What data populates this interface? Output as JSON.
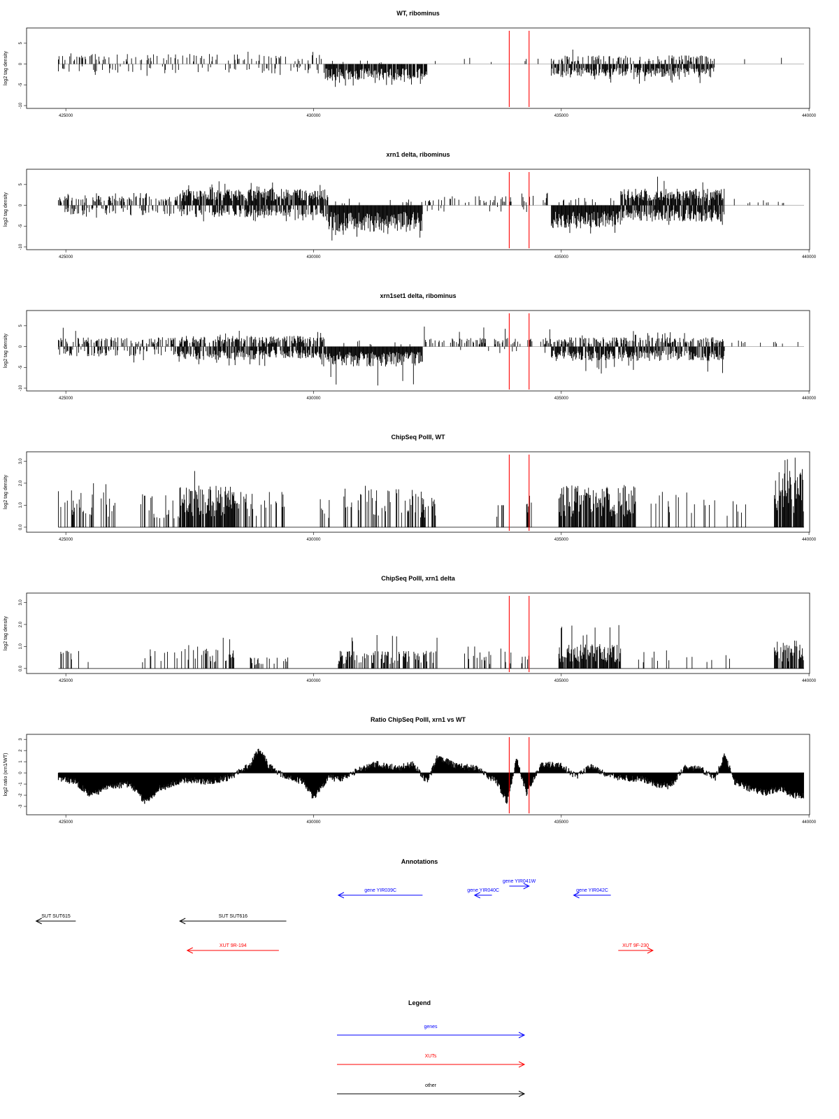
{
  "colors": {
    "marker": "#ff0000",
    "gene": "#0000ff",
    "xut": "#ff0000",
    "other": "#000000",
    "baseline": "#b0b0b0"
  },
  "chart_data": [
    {
      "type": "bar",
      "title": "WT, ribominus",
      "ylabel": "log2 tag density",
      "xlim": [
        424800,
        439900
      ],
      "ylim": [
        -10,
        8
      ],
      "yticks": [
        -10,
        -5,
        0,
        5
      ],
      "xticks": [
        425000,
        430000,
        435000,
        440000
      ],
      "markers": [
        433950,
        434350
      ],
      "profile": {
        "seed": 11,
        "mode": "rna",
        "baselineColor": "gray",
        "segments": [
          {
            "start": 424850,
            "end": 430200,
            "upDensity": 0.25,
            "upMean": 1.5,
            "upMax": 3.0,
            "downDensity": 0.15,
            "downMean": -1.4,
            "downMin": -3.5
          },
          {
            "start": 430200,
            "end": 432300,
            "upDensity": 0.05,
            "upMean": 0.6,
            "upMax": 1.2,
            "downDensity": 0.85,
            "downMean": -2.5,
            "downMin": -5.5
          },
          {
            "start": 432300,
            "end": 434800,
            "upDensity": 0.02,
            "upMean": 1.0,
            "upMax": 1.6,
            "downDensity": 0.0,
            "downMean": -1,
            "downMin": -1
          },
          {
            "start": 434800,
            "end": 438100,
            "upDensity": 0.35,
            "upMean": 1.3,
            "upMax": 3.5,
            "downDensity": 0.8,
            "downMean": -2.0,
            "downMin": -5.0
          },
          {
            "start": 438100,
            "end": 439900,
            "upDensity": 0.02,
            "upMean": 1.0,
            "upMax": 1.5,
            "downDensity": 0.0,
            "downMean": -1,
            "downMin": -1
          }
        ]
      }
    },
    {
      "type": "bar",
      "title": "xrn1 delta, ribominus",
      "ylabel": "log2 tag density",
      "xlim": [
        424800,
        439900
      ],
      "ylim": [
        -10,
        8
      ],
      "yticks": [
        -10,
        -5,
        0,
        5
      ],
      "xticks": [
        425000,
        430000,
        435000,
        440000
      ],
      "markers": [
        433950,
        434350
      ],
      "profile": {
        "seed": 23,
        "mode": "rna",
        "baselineColor": "gray",
        "segments": [
          {
            "start": 424850,
            "end": 427300,
            "upDensity": 0.45,
            "upMean": 1.5,
            "upMax": 3.0,
            "downDensity": 0.25,
            "downMean": -1.4,
            "downMin": -3.0
          },
          {
            "start": 427300,
            "end": 430300,
            "upDensity": 0.85,
            "upMean": 2.5,
            "upMax": 5.8,
            "downDensity": 0.6,
            "downMean": -1.8,
            "downMin": -4.0
          },
          {
            "start": 430300,
            "end": 432200,
            "upDensity": 0.05,
            "upMean": 1.0,
            "upMax": 2.0,
            "downDensity": 1.0,
            "downMean": -4.0,
            "downMin": -8.5
          },
          {
            "start": 432200,
            "end": 434800,
            "upDensity": 0.18,
            "upMean": 1.5,
            "upMax": 3.0,
            "downDensity": 0.05,
            "downMean": -1.0,
            "downMin": -2.0
          },
          {
            "start": 434800,
            "end": 436200,
            "upDensity": 0.1,
            "upMean": 1.2,
            "upMax": 2.0,
            "downDensity": 1.0,
            "downMean": -3.5,
            "downMin": -6.8
          },
          {
            "start": 436200,
            "end": 438300,
            "upDensity": 0.85,
            "upMean": 2.5,
            "upMax": 7.3,
            "downDensity": 0.75,
            "downMean": -2.5,
            "downMin": -6.5
          },
          {
            "start": 438300,
            "end": 439900,
            "upDensity": 0.06,
            "upMean": 1.0,
            "upMax": 1.8,
            "downDensity": 0.0,
            "downMean": -1,
            "downMin": -1
          }
        ]
      }
    },
    {
      "type": "bar",
      "title": "xrn1set1 delta, ribominus",
      "ylabel": "log2 tag density",
      "xlim": [
        424800,
        439900
      ],
      "ylim": [
        -10,
        8
      ],
      "yticks": [
        -10,
        -5,
        0,
        5
      ],
      "xticks": [
        425000,
        430000,
        435000,
        440000
      ],
      "markers": [
        433950,
        434350
      ],
      "profile": {
        "seed": 37,
        "mode": "rna",
        "baselineColor": "gray",
        "segments": [
          {
            "start": 424850,
            "end": 427300,
            "upDensity": 0.4,
            "upMean": 1.4,
            "upMax": 4.8,
            "downDensity": 0.35,
            "downMean": -1.5,
            "downMin": -4.0
          },
          {
            "start": 427300,
            "end": 430300,
            "upDensity": 0.6,
            "upMean": 1.6,
            "upMax": 4.0,
            "downDensity": 0.75,
            "downMean": -2.0,
            "downMin": -5.5
          },
          {
            "start": 430300,
            "end": 432200,
            "upDensity": 0.05,
            "upMean": 1.0,
            "upMax": 2.0,
            "downDensity": 1.0,
            "downMean": -3.0,
            "downMin": -9.5
          },
          {
            "start": 432200,
            "end": 434800,
            "upDensity": 0.35,
            "upMean": 1.3,
            "upMax": 5.0,
            "downDensity": 0.05,
            "downMean": -1.0,
            "downMin": -2.0
          },
          {
            "start": 434800,
            "end": 438300,
            "upDensity": 0.5,
            "upMean": 1.4,
            "upMax": 3.8,
            "downDensity": 0.8,
            "downMean": -2.2,
            "downMin": -6.5
          },
          {
            "start": 438300,
            "end": 439900,
            "upDensity": 0.08,
            "upMean": 1.2,
            "upMax": 2.5,
            "downDensity": 0.0,
            "downMean": -1,
            "downMin": -1
          }
        ]
      }
    },
    {
      "type": "bar",
      "title": "ChipSeq PolII, WT",
      "ylabel": "log2 tag density",
      "xlim": [
        424800,
        439900
      ],
      "ylim": [
        -0.1,
        3.3
      ],
      "yticks": [
        0.0,
        1.0,
        2.0,
        3.0
      ],
      "yticklabels": [
        "0.0",
        "1.0",
        "2.0",
        "3.0"
      ],
      "xticks": [
        425000,
        430000,
        435000,
        440000
      ],
      "markers": [
        433950,
        434350
      ],
      "profile": {
        "seed": 51,
        "mode": "chip",
        "baselineColor": "black",
        "segments": [
          {
            "start": 424850,
            "end": 426000,
            "upDensity": 0.35,
            "upMean": 1.1,
            "upMax": 2.0
          },
          {
            "start": 426500,
            "end": 427300,
            "upDensity": 0.3,
            "upMean": 1.0,
            "upMax": 1.6
          },
          {
            "start": 427300,
            "end": 428400,
            "upDensity": 0.8,
            "upMean": 1.2,
            "upMax": 3.0
          },
          {
            "start": 428400,
            "end": 429500,
            "upDensity": 0.35,
            "upMean": 1.1,
            "upMax": 1.6
          },
          {
            "start": 430100,
            "end": 430400,
            "upDensity": 0.4,
            "upMean": 1.0,
            "upMax": 1.6
          },
          {
            "start": 430600,
            "end": 432500,
            "upDensity": 0.4,
            "upMean": 1.1,
            "upMax": 2.0
          },
          {
            "start": 433700,
            "end": 433850,
            "upDensity": 0.5,
            "upMean": 1.0,
            "upMax": 1.0
          },
          {
            "start": 434300,
            "end": 434400,
            "upDensity": 0.5,
            "upMean": 1.0,
            "upMax": 1.6
          },
          {
            "start": 434950,
            "end": 436500,
            "upDensity": 0.85,
            "upMean": 1.2,
            "upMax": 2.0
          },
          {
            "start": 436800,
            "end": 438800,
            "upDensity": 0.15,
            "upMean": 1.1,
            "upMax": 2.2
          },
          {
            "start": 439300,
            "end": 439900,
            "upDensity": 0.9,
            "upMean": 1.6,
            "upMax": 3.2
          }
        ]
      }
    },
    {
      "type": "bar",
      "title": "ChipSeq PolII, xrn1 delta",
      "ylabel": "log2 tag density",
      "xlim": [
        424800,
        439900
      ],
      "ylim": [
        -0.1,
        3.3
      ],
      "yticks": [
        0.0,
        1.0,
        2.0,
        3.0
      ],
      "yticklabels": [
        "0.0",
        "1.0",
        "2.0",
        "3.0"
      ],
      "xticks": [
        425000,
        430000,
        435000,
        440000
      ],
      "markers": [
        433950,
        434350
      ],
      "profile": {
        "seed": 67,
        "mode": "chip",
        "baselineColor": "black",
        "segments": [
          {
            "start": 424850,
            "end": 426000,
            "upDensity": 0.08,
            "upMean": 0.6,
            "upMax": 0.8
          },
          {
            "start": 426500,
            "end": 427300,
            "upDensity": 0.15,
            "upMean": 0.5,
            "upMax": 1.1
          },
          {
            "start": 427300,
            "end": 428400,
            "upDensity": 0.35,
            "upMean": 0.7,
            "upMax": 1.4
          },
          {
            "start": 428700,
            "end": 429500,
            "upDensity": 0.2,
            "upMean": 0.4,
            "upMax": 0.5
          },
          {
            "start": 430500,
            "end": 432500,
            "upDensity": 0.55,
            "upMean": 0.5,
            "upMax": 1.6
          },
          {
            "start": 433000,
            "end": 434400,
            "upDensity": 0.15,
            "upMean": 0.5,
            "upMax": 1.0
          },
          {
            "start": 434950,
            "end": 436200,
            "upDensity": 0.9,
            "upMean": 0.7,
            "upMax": 2.0
          },
          {
            "start": 436500,
            "end": 438500,
            "upDensity": 0.1,
            "upMean": 0.6,
            "upMax": 1.0
          },
          {
            "start": 439300,
            "end": 439900,
            "upDensity": 0.8,
            "upMean": 0.8,
            "upMax": 1.6
          }
        ]
      }
    },
    {
      "type": "area",
      "title": "Ratio ChipSeq PolII, xrn1 vs WT",
      "ylabel": "log2 ratio (xrn1/WT)",
      "xlim": [
        424800,
        439900
      ],
      "ylim": [
        -3.5,
        3.2
      ],
      "yticks": [
        -3,
        -2,
        -1,
        0,
        1,
        2,
        3
      ],
      "xticks": [
        425000,
        430000,
        435000,
        440000
      ],
      "markers": [
        433950,
        434350
      ],
      "profile": {
        "seed": 83,
        "mode": "ratio",
        "anchors": [
          [
            424850,
            -0.5
          ],
          [
            425200,
            -0.8
          ],
          [
            425500,
            -2.0
          ],
          [
            425900,
            -1.2
          ],
          [
            426300,
            -1.0
          ],
          [
            426600,
            -2.6
          ],
          [
            426900,
            -1.4
          ],
          [
            427400,
            -0.6
          ],
          [
            427900,
            -0.8
          ],
          [
            428300,
            -0.4
          ],
          [
            428700,
            0.6
          ],
          [
            428900,
            2.2
          ],
          [
            429100,
            0.6
          ],
          [
            429400,
            -0.3
          ],
          [
            429800,
            -0.8
          ],
          [
            430000,
            -2.2
          ],
          [
            430300,
            -0.4
          ],
          [
            430600,
            -0.6
          ],
          [
            430900,
            0.3
          ],
          [
            431300,
            0.8
          ],
          [
            431700,
            0.4
          ],
          [
            432000,
            0.8
          ],
          [
            432300,
            -0.8
          ],
          [
            432500,
            1.4
          ],
          [
            432900,
            0.6
          ],
          [
            433300,
            0.4
          ],
          [
            433700,
            -0.8
          ],
          [
            433900,
            -2.6
          ],
          [
            434100,
            1.2
          ],
          [
            434300,
            -1.8
          ],
          [
            434600,
            0.8
          ],
          [
            435000,
            0.6
          ],
          [
            435300,
            -0.3
          ],
          [
            435600,
            0.6
          ],
          [
            435900,
            -0.2
          ],
          [
            436300,
            -0.5
          ],
          [
            436600,
            -0.5
          ],
          [
            436900,
            -1.0
          ],
          [
            437200,
            -1.2
          ],
          [
            437500,
            0.6
          ],
          [
            437800,
            0.4
          ],
          [
            438100,
            -0.5
          ],
          [
            438300,
            1.6
          ],
          [
            438500,
            -0.8
          ],
          [
            438800,
            -1.4
          ],
          [
            439100,
            -1.8
          ],
          [
            439400,
            -1.4
          ],
          [
            439700,
            -2.0
          ],
          [
            439900,
            -2.0
          ]
        ]
      }
    }
  ],
  "annotations": {
    "title": "Annotations",
    "xlim": [
      424800,
      439900
    ],
    "items": [
      {
        "label": "gene YIR039C",
        "start": 432200,
        "end": 430500,
        "type": "gene",
        "row": 0
      },
      {
        "label": "gene YIR040C",
        "start": 433600,
        "end": 433250,
        "type": "gene",
        "row": 0
      },
      {
        "label": "gene YIR041W",
        "start": 433950,
        "end": 434350,
        "type": "gene",
        "row": -1
      },
      {
        "label": "gene YIR042C",
        "start": 436000,
        "end": 435250,
        "type": "gene",
        "row": 0
      },
      {
        "label": "SUT SUT615",
        "start": 425200,
        "end": 424400,
        "type": "other",
        "row": 1
      },
      {
        "label": "SUT SUT616",
        "start": 429450,
        "end": 427300,
        "type": "other",
        "row": 1
      },
      {
        "label": "XUT 9R-194",
        "start": 429300,
        "end": 427450,
        "type": "xut",
        "row": 2
      },
      {
        "label": "XUT 9F-230",
        "start": 436150,
        "end": 436850,
        "type": "xut",
        "row": 2
      }
    ]
  },
  "legend": {
    "title": "Legend",
    "items": [
      {
        "label": "genes",
        "type": "gene"
      },
      {
        "label": "XUTs",
        "type": "xut"
      },
      {
        "label": "other",
        "type": "other"
      }
    ]
  }
}
